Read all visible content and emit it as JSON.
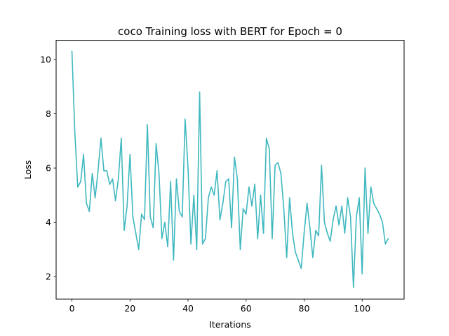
{
  "chart_data": {
    "type": "line",
    "title": "coco Training loss with BERT for Epoch = 0",
    "xlabel": "Iterations",
    "ylabel": "Loss",
    "xlim": [
      -5.45,
      114.45
    ],
    "ylim": [
      1.17,
      10.71
    ],
    "xticks": [
      0,
      20,
      40,
      60,
      80,
      100
    ],
    "yticks": [
      2,
      4,
      6,
      8,
      10
    ],
    "grid": false,
    "legend": "none",
    "line_color": "#3fb8bf",
    "series": [
      {
        "x": [
          0,
          1,
          2,
          3,
          4,
          5,
          6,
          7,
          8,
          9,
          10,
          11,
          12,
          13,
          14,
          15,
          16,
          17,
          18,
          19,
          20,
          21,
          22,
          23,
          24,
          25,
          26,
          27,
          28,
          29,
          30,
          31,
          32,
          33,
          34,
          35,
          36,
          37,
          38,
          39,
          40,
          41,
          42,
          43,
          44,
          45,
          46,
          47,
          48,
          49,
          50,
          51,
          52,
          53,
          54,
          55,
          56,
          57,
          58,
          59,
          60,
          61,
          62,
          63,
          64,
          65,
          66,
          67,
          68,
          69,
          70,
          71,
          72,
          73,
          74,
          75,
          76,
          77,
          78,
          79,
          80,
          81,
          82,
          83,
          84,
          85,
          86,
          87,
          88,
          89,
          90,
          91,
          92,
          93,
          94,
          95,
          96,
          97,
          98,
          99,
          100,
          101,
          102,
          103,
          104,
          105,
          106,
          107,
          108,
          109
        ],
        "values": [
          10.3,
          7.3,
          5.3,
          5.5,
          6.5,
          4.7,
          4.4,
          5.8,
          4.9,
          5.9,
          7.1,
          5.9,
          5.9,
          5.4,
          5.6,
          4.8,
          5.6,
          7.1,
          3.7,
          4.6,
          6.5,
          4.2,
          3.6,
          3.0,
          4.3,
          4.1,
          7.6,
          4.2,
          3.8,
          6.9,
          5.8,
          3.4,
          4.0,
          3.1,
          5.5,
          2.6,
          5.6,
          4.4,
          4.2,
          7.8,
          6.0,
          3.2,
          5.0,
          3.0,
          8.8,
          3.2,
          3.4,
          4.9,
          5.3,
          5.0,
          5.9,
          4.1,
          4.7,
          5.5,
          5.6,
          3.8,
          6.4,
          5.6,
          3.0,
          4.5,
          4.3,
          5.3,
          4.6,
          5.4,
          3.4,
          5.0,
          3.6,
          7.1,
          6.7,
          3.4,
          6.1,
          6.2,
          5.8,
          4.5,
          2.7,
          4.9,
          3.6,
          2.9,
          2.6,
          2.3,
          3.6,
          4.7,
          3.8,
          2.7,
          3.7,
          3.5,
          6.1,
          4.0,
          3.6,
          3.3,
          4.1,
          4.6,
          3.9,
          4.6,
          3.6,
          4.9,
          4.2,
          1.6,
          4.2,
          4.9,
          2.1,
          6.0,
          3.6,
          5.3,
          4.7,
          4.5,
          4.3,
          4.0,
          3.2,
          3.4
        ]
      }
    ]
  }
}
